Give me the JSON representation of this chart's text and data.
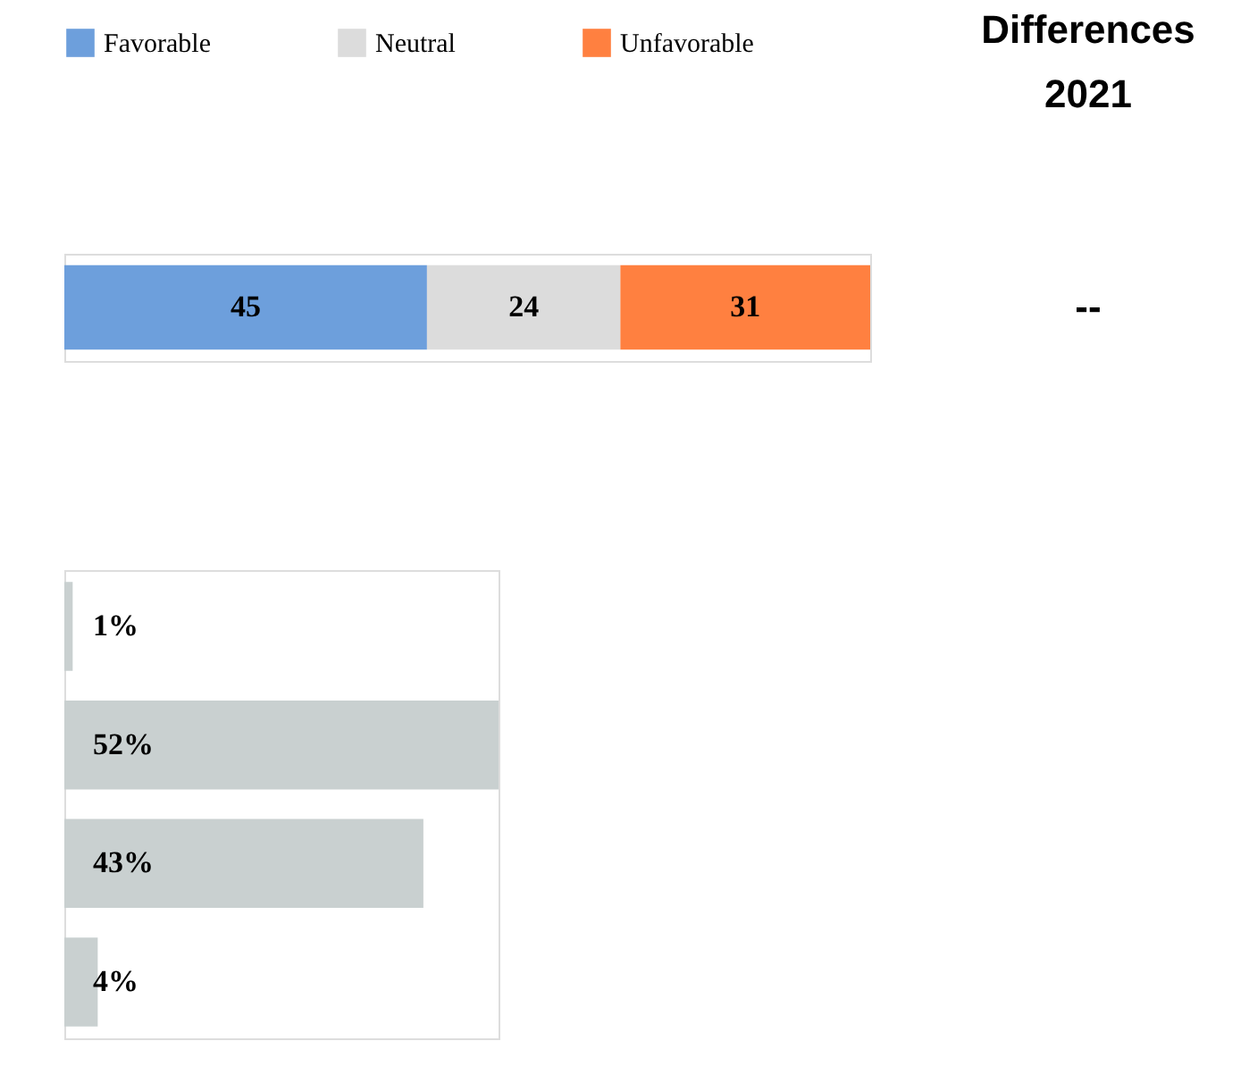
{
  "chart_data": [
    {
      "type": "bar",
      "orientation": "horizontal",
      "stacked": true,
      "categories": [
        null
      ],
      "legend": "top",
      "data_labels": true,
      "tick_labels": false,
      "series": [
        {
          "name": "Favorable",
          "color": "#6d9fdc",
          "values": [
            45
          ]
        },
        {
          "name": "Neutral",
          "color": "#dcdcdc",
          "values": [
            24
          ]
        },
        {
          "name": "Unfavorable",
          "color": "#ff8040",
          "values": [
            31
          ]
        }
      ],
      "annotations": [
        "Differences\n2021",
        "--"
      ]
    },
    {
      "type": "bar",
      "orientation": "horizontal",
      "categories": [
        null,
        null,
        null,
        null
      ],
      "tick_labels": false,
      "series": [
        {
          "color": "#c9d0d0",
          "values": [
            1,
            52,
            43,
            4
          ],
          "value_labels": [
            "1%",
            "52%",
            "43%",
            "4%"
          ]
        }
      ]
    }
  ]
}
